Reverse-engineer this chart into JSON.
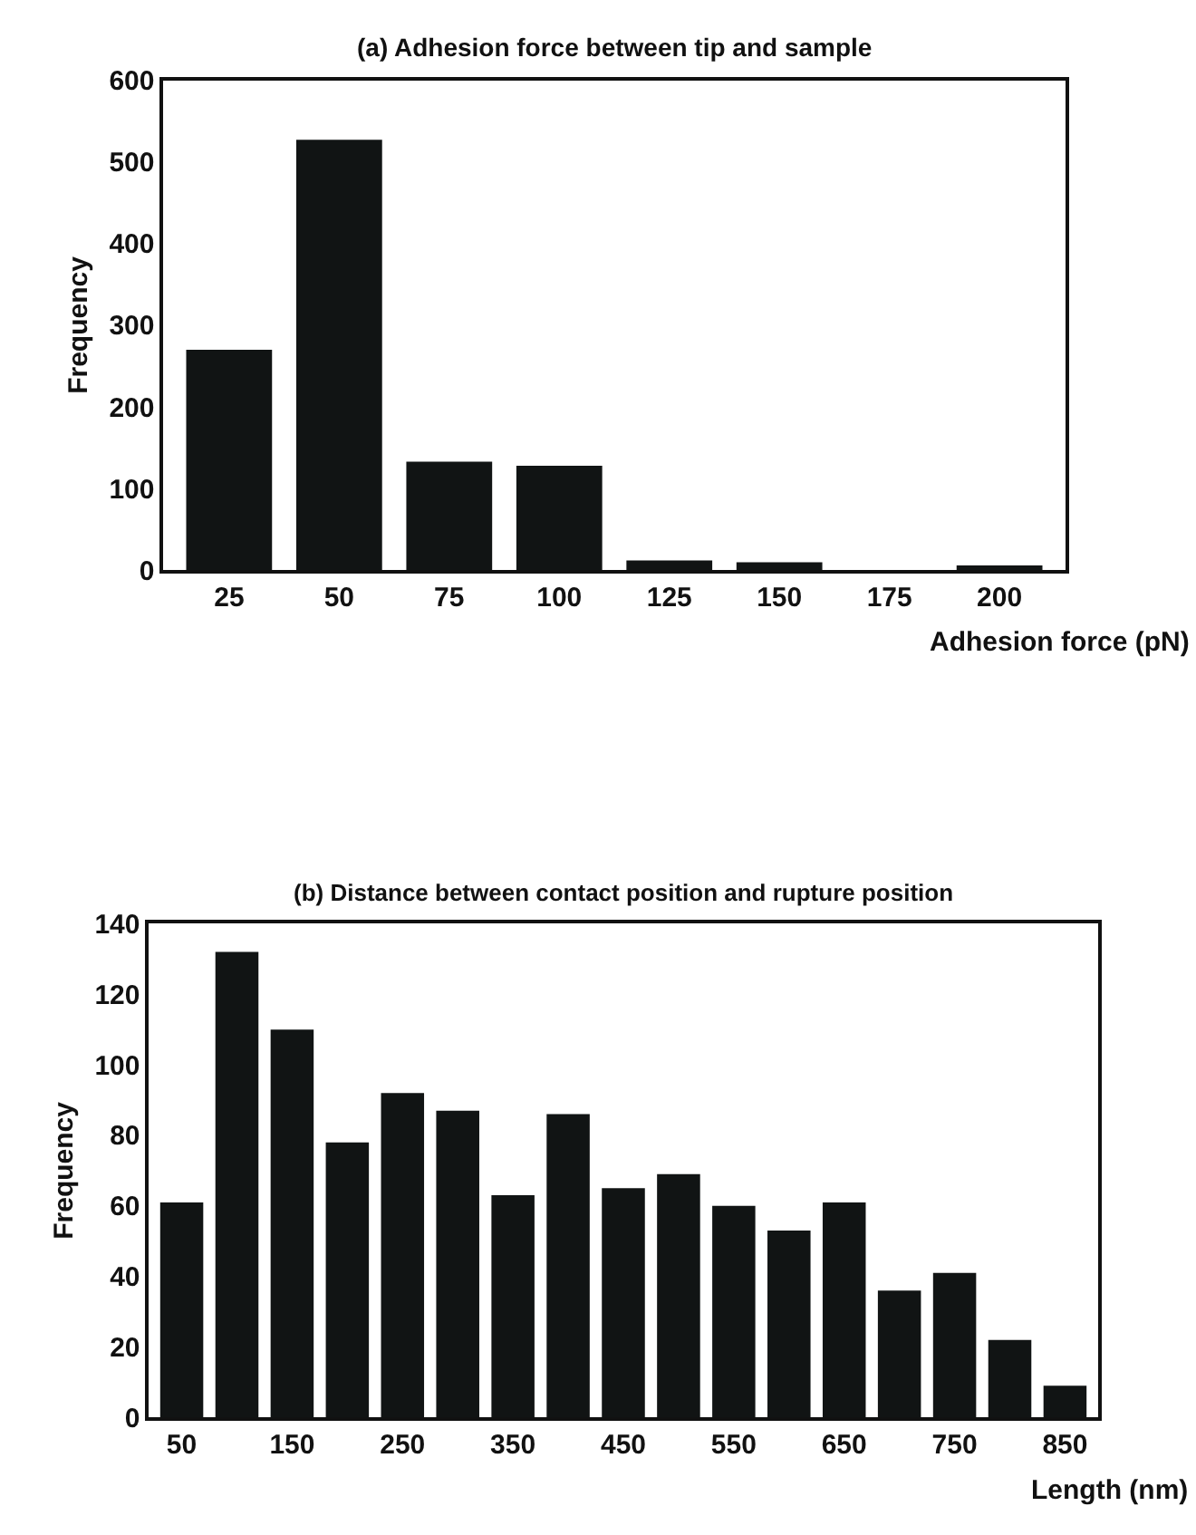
{
  "chart_data": [
    {
      "type": "bar",
      "title": "(a) Adhesion force between tip and sample",
      "xlabel": "Adhesion force (pN)",
      "ylabel": "Frequency",
      "categories": [
        "25",
        "50",
        "75",
        "100",
        "125",
        "150",
        "175",
        "200"
      ],
      "values": [
        270,
        527,
        133,
        128,
        12,
        10,
        0,
        6
      ],
      "color": "#111414",
      "ylim": [
        0,
        600
      ],
      "yticks": [
        0,
        100,
        200,
        300,
        400,
        500,
        600
      ]
    },
    {
      "type": "bar",
      "title": "(b) Distance between contact position and rupture position",
      "xlabel": "Length (nm)",
      "ylabel": "Frequency",
      "categories": [
        "50",
        null,
        "150",
        null,
        "250",
        null,
        "350",
        null,
        "450",
        null,
        "550",
        null,
        "650",
        null,
        "750",
        null,
        "850"
      ],
      "values": [
        61,
        132,
        110,
        78,
        92,
        87,
        63,
        86,
        65,
        69,
        60,
        53,
        61,
        36,
        41,
        22,
        9
      ],
      "color": "#111414",
      "ylim": [
        0,
        140
      ],
      "yticks": [
        0,
        20,
        40,
        60,
        80,
        100,
        120,
        140
      ]
    }
  ]
}
